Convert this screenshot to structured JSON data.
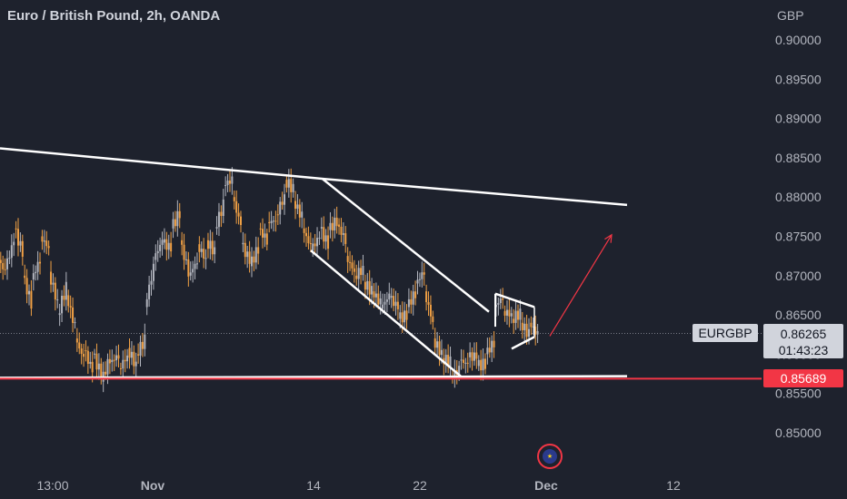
{
  "header": {
    "title": "Euro / British Pound, 2h, OANDA",
    "currency": "GBP"
  },
  "chart_data": {
    "type": "candlestick",
    "title": "Euro / British Pound, 2h, OANDA",
    "y_unit": "GBP",
    "ylim": [
      0.8462,
      0.9051
    ],
    "y_ticks": [
      "0.90000",
      "0.89500",
      "0.89000",
      "0.88500",
      "0.88000",
      "0.87500",
      "0.87000",
      "0.86500",
      "0.86000",
      "0.85500",
      "0.85000"
    ],
    "x_ticks": [
      "13:00",
      "Nov",
      "14",
      "22",
      "Dec",
      "12"
    ],
    "price_trace": [
      [
        0.8725,
        0.8705
      ],
      [
        0.8708,
        0.8745
      ],
      [
        0.876,
        0.873
      ],
      [
        0.87,
        0.8665
      ],
      [
        0.8695,
        0.872
      ],
      [
        0.875,
        0.8735
      ],
      [
        0.8705,
        0.8665
      ],
      [
        0.865,
        0.8685
      ],
      [
        0.8675,
        0.8635
      ],
      [
        0.862,
        0.8595
      ],
      [
        0.8605,
        0.858
      ],
      [
        0.86,
        0.8575
      ],
      [
        0.8565,
        0.8595
      ],
      [
        0.859,
        0.8598
      ],
      [
        0.8582,
        0.8597
      ],
      [
        0.8608,
        0.8585
      ],
      [
        0.86,
        0.8618
      ],
      [
        0.866,
        0.871
      ],
      [
        0.872,
        0.8745
      ],
      [
        0.8742,
        0.8735
      ],
      [
        0.876,
        0.878
      ],
      [
        0.8745,
        0.8705
      ],
      [
        0.87,
        0.8718
      ],
      [
        0.874,
        0.872
      ],
      [
        0.8745,
        0.873
      ],
      [
        0.876,
        0.879
      ],
      [
        0.8815,
        0.8822
      ],
      [
        0.88,
        0.8765
      ],
      [
        0.874,
        0.872
      ],
      [
        0.8712,
        0.8735
      ],
      [
        0.876,
        0.8745
      ],
      [
        0.8768,
        0.877
      ],
      [
        0.8778,
        0.88
      ],
      [
        0.8822,
        0.881
      ],
      [
        0.8795,
        0.8775
      ],
      [
        0.876,
        0.8738
      ],
      [
        0.8732,
        0.875
      ],
      [
        0.876,
        0.874
      ],
      [
        0.8758,
        0.877
      ],
      [
        0.8765,
        0.8745
      ],
      [
        0.8725,
        0.8705
      ],
      [
        0.87,
        0.8708
      ],
      [
        0.8692,
        0.868
      ],
      [
        0.868,
        0.8665
      ],
      [
        0.8658,
        0.8675
      ],
      [
        0.8672,
        0.866
      ],
      [
        0.8645,
        0.865
      ],
      [
        0.866,
        0.8678
      ],
      [
        0.869,
        0.8705
      ],
      [
        0.868,
        0.864
      ],
      [
        0.862,
        0.86
      ],
      [
        0.8595,
        0.859
      ],
      [
        0.8572,
        0.858
      ],
      [
        0.8592,
        0.8588
      ],
      [
        0.8596,
        0.8598
      ],
      [
        0.8585,
        0.8588
      ],
      [
        0.86,
        0.8615
      ],
      [
        0.866,
        0.8672
      ],
      [
        0.8655,
        0.865
      ],
      [
        0.8645,
        0.8652
      ],
      [
        0.864,
        0.8625
      ],
      [
        0.864,
        0.8625
      ]
    ],
    "drawings": {
      "descending_resistance": [
        [
          0,
          0.8862
        ],
        [
          357,
          0.8823
        ],
        [
          690,
          0.879
        ]
      ],
      "support": [
        [
          0,
          0.857
        ],
        [
          690,
          0.8572
        ]
      ],
      "channel_upper": [
        [
          355,
          0.8823
        ],
        [
          538,
          0.8654
        ]
      ],
      "channel_lower": [
        [
          342,
          0.8732
        ],
        [
          507,
          0.8572
        ]
      ],
      "triangle": [
        [
          545,
          0.8677
        ],
        [
          588,
          0.866
        ],
        [
          563,
          0.8607
        ],
        [
          588,
          0.8622
        ]
      ],
      "arrow": {
        "from": [
          605,
          0.8623
        ],
        "to": [
          673,
          0.8752
        ]
      }
    },
    "current_price": {
      "value": "0.86265",
      "countdown": "01:43:23",
      "symbol": "EURGBP"
    },
    "alert_level": {
      "value": "0.85689"
    },
    "grid": false,
    "colors": {
      "background": "#1e222d",
      "candle_bull": "#b2b5be",
      "candle_bear": "#f0a044",
      "lines": "#ffffff",
      "arrow": "#f23645",
      "level": "#f23645",
      "axis_text": "#b2b5be"
    }
  }
}
